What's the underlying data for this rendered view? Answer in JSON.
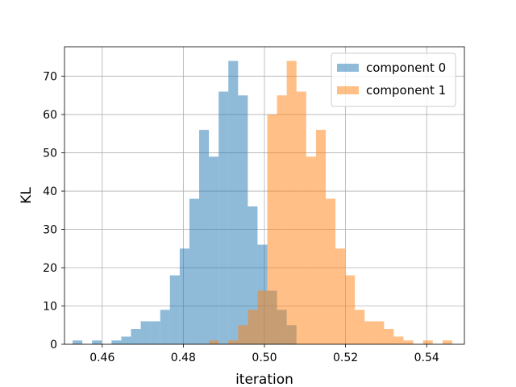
{
  "chart_data": {
    "type": "bar",
    "subtype": "histogram",
    "xlabel": "iteration",
    "ylabel": "KL",
    "xlim": [
      0.4507,
      0.5493
    ],
    "ylim": [
      0,
      77.7
    ],
    "xticks": [
      0.46,
      0.48,
      0.5,
      0.52,
      0.54
    ],
    "xtick_labels": [
      "0.46",
      "0.48",
      "0.50",
      "0.52",
      "0.54"
    ],
    "yticks": [
      0,
      10,
      20,
      30,
      40,
      50,
      60,
      70
    ],
    "ytick_labels": [
      "0",
      "10",
      "20",
      "30",
      "40",
      "50",
      "60",
      "70"
    ],
    "grid": true,
    "legend_position": "top-right",
    "alpha": 0.5,
    "series": [
      {
        "name": "component 0",
        "color": "#1f77b4",
        "bins": [
          [
            0.4527,
            0.4551,
            1
          ],
          [
            0.4575,
            0.4599,
            1
          ],
          [
            0.4623,
            0.4647,
            1
          ],
          [
            0.4647,
            0.4671,
            2
          ],
          [
            0.4671,
            0.4695,
            4
          ],
          [
            0.4695,
            0.4719,
            6
          ],
          [
            0.4719,
            0.4743,
            6
          ],
          [
            0.4743,
            0.4767,
            9
          ],
          [
            0.4767,
            0.4791,
            18
          ],
          [
            0.4791,
            0.4815,
            25
          ],
          [
            0.4815,
            0.4839,
            38
          ],
          [
            0.4839,
            0.4863,
            56
          ],
          [
            0.4863,
            0.4887,
            49
          ],
          [
            0.4887,
            0.4911,
            66
          ],
          [
            0.4911,
            0.4935,
            74
          ],
          [
            0.4935,
            0.4959,
            65
          ],
          [
            0.4959,
            0.4983,
            36
          ],
          [
            0.4983,
            0.5007,
            26
          ],
          [
            0.5007,
            0.5031,
            14
          ],
          [
            0.5031,
            0.5055,
            9
          ],
          [
            0.5055,
            0.5079,
            5
          ]
        ]
      },
      {
        "name": "component 1",
        "color": "#ff7f0e",
        "bins": [
          [
            0.4863,
            0.4887,
            1
          ],
          [
            0.4911,
            0.4935,
            1
          ],
          [
            0.4935,
            0.4959,
            5
          ],
          [
            0.4959,
            0.4983,
            9
          ],
          [
            0.4983,
            0.5007,
            14
          ],
          [
            0.5007,
            0.5031,
            60
          ],
          [
            0.5031,
            0.5055,
            65
          ],
          [
            0.5055,
            0.5079,
            74
          ],
          [
            0.5079,
            0.5103,
            66
          ],
          [
            0.5103,
            0.5127,
            49
          ],
          [
            0.5127,
            0.5151,
            56
          ],
          [
            0.5151,
            0.5175,
            38
          ],
          [
            0.5175,
            0.5199,
            25
          ],
          [
            0.5199,
            0.5223,
            18
          ],
          [
            0.5223,
            0.5247,
            9
          ],
          [
            0.5247,
            0.5271,
            6
          ],
          [
            0.5271,
            0.5295,
            6
          ],
          [
            0.5295,
            0.5319,
            4
          ],
          [
            0.5319,
            0.5343,
            2
          ],
          [
            0.5343,
            0.5367,
            1
          ],
          [
            0.5391,
            0.5415,
            1
          ],
          [
            0.5439,
            0.5463,
            1
          ]
        ]
      }
    ]
  }
}
